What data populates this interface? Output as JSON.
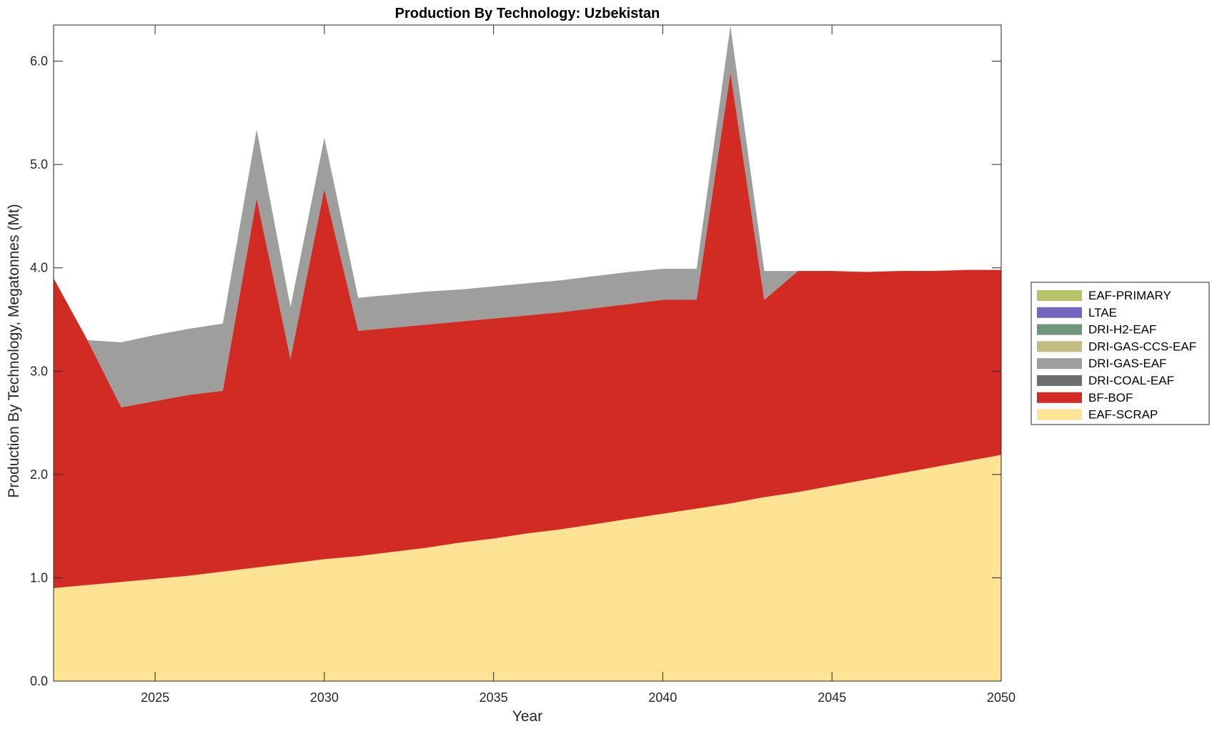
{
  "chart_data": {
    "type": "area",
    "stacked": true,
    "title": "Production By Technology: Uzbekistan",
    "xlabel": "Year",
    "ylabel": "Production By Technology, Megatonnes (Mt)",
    "xlim": [
      2022,
      2050
    ],
    "ylim": [
      0,
      6.35
    ],
    "xticks": [
      2025,
      2030,
      2035,
      2040,
      2045,
      2050
    ],
    "yticks": [
      0,
      1,
      2,
      3,
      4,
      5,
      6
    ],
    "ytick_labels": [
      "0.0",
      "1.0",
      "2.0",
      "3.0",
      "4.0",
      "5.0",
      "6.0"
    ],
    "legend_position": "right",
    "x": [
      2022,
      2023,
      2024,
      2025,
      2026,
      2027,
      2028,
      2029,
      2030,
      2031,
      2032,
      2033,
      2034,
      2035,
      2036,
      2037,
      2038,
      2039,
      2040,
      2041,
      2042,
      2043,
      2044,
      2045,
      2046,
      2047,
      2048,
      2049,
      2050
    ],
    "series": [
      {
        "name": "EAF-SCRAP",
        "color": "#FDE393",
        "values": [
          0.9,
          0.93,
          0.96,
          0.99,
          1.02,
          1.06,
          1.1,
          1.14,
          1.18,
          1.21,
          1.25,
          1.29,
          1.34,
          1.38,
          1.43,
          1.47,
          1.52,
          1.57,
          1.62,
          1.67,
          1.72,
          1.78,
          1.83,
          1.89,
          1.95,
          2.01,
          2.07,
          2.13,
          2.19
        ]
      },
      {
        "name": "BF-BOF",
        "color": "#D22B24",
        "values": [
          3.0,
          2.37,
          1.69,
          1.72,
          1.75,
          1.75,
          3.57,
          1.98,
          3.58,
          2.18,
          2.17,
          2.16,
          2.14,
          2.13,
          2.11,
          2.1,
          2.09,
          2.08,
          2.07,
          2.02,
          4.17,
          1.91,
          2.14,
          2.08,
          2.01,
          1.96,
          1.9,
          1.85,
          1.79
        ]
      },
      {
        "name": "DRI-COAL-EAF",
        "color": "#6E6E6E",
        "values": [
          0,
          0,
          0,
          0,
          0,
          0,
          0,
          0,
          0,
          0,
          0,
          0,
          0,
          0,
          0,
          0,
          0,
          0,
          0,
          0,
          0,
          0,
          0,
          0,
          0,
          0,
          0,
          0,
          0
        ]
      },
      {
        "name": "DRI-GAS-EAF",
        "color": "#9E9E9C",
        "values": [
          0,
          0,
          0.63,
          0.64,
          0.64,
          0.65,
          0.67,
          0.5,
          0.5,
          0.32,
          0.32,
          0.32,
          0.31,
          0.31,
          0.31,
          0.31,
          0.31,
          0.31,
          0.3,
          0.3,
          0.45,
          0.28,
          0,
          0,
          0,
          0,
          0,
          0,
          0
        ]
      },
      {
        "name": "DRI-GAS-CCS-EAF",
        "color": "#C4BB7E",
        "values": [
          0,
          0,
          0,
          0,
          0,
          0,
          0,
          0,
          0,
          0,
          0,
          0,
          0,
          0,
          0,
          0,
          0,
          0,
          0,
          0,
          0,
          0,
          0,
          0,
          0,
          0,
          0,
          0,
          0
        ]
      },
      {
        "name": "DRI-H2-EAF",
        "color": "#6F957A",
        "values": [
          0,
          0,
          0,
          0,
          0,
          0,
          0,
          0,
          0,
          0,
          0,
          0,
          0,
          0,
          0,
          0,
          0,
          0,
          0,
          0,
          0,
          0,
          0,
          0,
          0,
          0,
          0,
          0,
          0
        ]
      },
      {
        "name": "LTAE",
        "color": "#7367BF",
        "values": [
          0,
          0,
          0,
          0,
          0,
          0,
          0,
          0,
          0,
          0,
          0,
          0,
          0,
          0,
          0,
          0,
          0,
          0,
          0,
          0,
          0,
          0,
          0,
          0,
          0,
          0,
          0,
          0,
          0
        ]
      },
      {
        "name": "EAF-PRIMARY",
        "color": "#B9C46A",
        "values": [
          0,
          0,
          0,
          0,
          0,
          0,
          0,
          0,
          0,
          0,
          0,
          0,
          0,
          0,
          0,
          0,
          0,
          0,
          0,
          0,
          0,
          0,
          0,
          0,
          0,
          0,
          0,
          0,
          0
        ]
      }
    ],
    "legend_order": [
      "EAF-PRIMARY",
      "LTAE",
      "DRI-H2-EAF",
      "DRI-GAS-CCS-EAF",
      "DRI-GAS-EAF",
      "DRI-COAL-EAF",
      "BF-BOF",
      "EAF-SCRAP"
    ]
  }
}
